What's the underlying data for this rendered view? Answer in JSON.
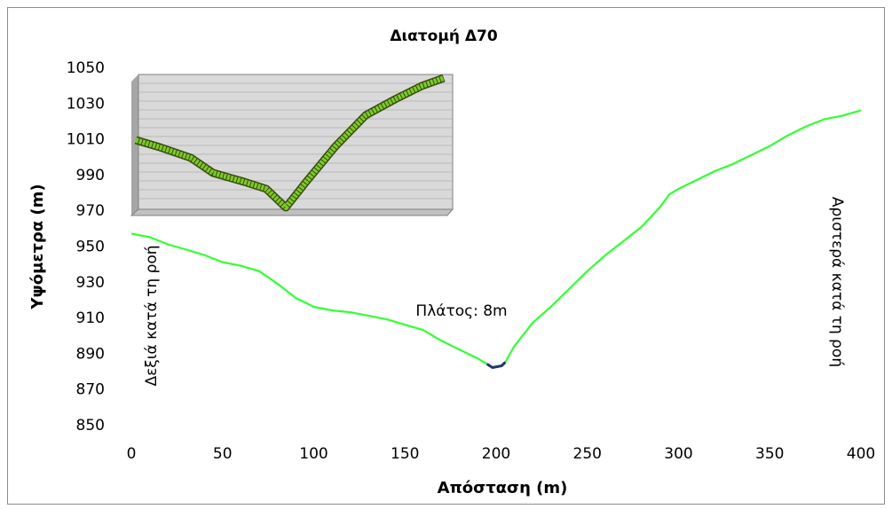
{
  "chart_data": {
    "type": "line",
    "title": "Διατομή Δ70",
    "y_label": "Υψόμετρα (m)",
    "x_label": "Απόσταση (m)",
    "annotations": [
      "Δεξιά κατά τη ροή",
      "Αριστερά κατά τη ροή",
      "Πλάτος: 8m"
    ],
    "x": [
      0,
      10,
      20,
      30,
      40,
      50,
      60,
      70,
      80,
      90,
      100,
      110,
      120,
      130,
      140,
      150,
      160,
      170,
      180,
      190,
      195,
      198,
      203,
      205,
      210,
      220,
      230,
      240,
      250,
      260,
      270,
      280,
      290,
      295,
      300,
      310,
      320,
      330,
      340,
      350,
      360,
      370,
      380,
      390,
      400
    ],
    "series": [
      {
        "color": "#33ff33",
        "values": [
          957,
          955,
          951,
          948,
          945,
          941,
          939,
          936,
          929,
          921,
          916,
          914,
          913,
          911,
          909,
          906,
          903,
          897,
          892,
          887,
          884,
          882,
          883,
          885,
          894,
          907,
          916,
          926,
          936,
          945,
          953,
          961,
          972,
          979,
          982,
          987,
          992,
          996,
          1001,
          1006,
          1012,
          1017,
          1021,
          1023,
          1026
        ]
      },
      {
        "color": "#1f3864",
        "values": [
          null,
          null,
          null,
          null,
          null,
          null,
          null,
          null,
          null,
          null,
          null,
          null,
          null,
          null,
          null,
          null,
          null,
          null,
          null,
          null,
          884,
          882,
          883,
          885,
          null,
          null,
          null,
          null,
          null,
          null,
          null,
          null,
          null,
          null,
          null,
          null,
          null,
          null,
          null,
          null,
          null,
          null,
          null,
          null,
          null
        ]
      }
    ],
    "xlim": [
      0,
      400
    ],
    "xticks": [
      0,
      50,
      100,
      150,
      200,
      250,
      300,
      350,
      400
    ],
    "ylim": [
      850,
      1050
    ],
    "yticks": [
      850,
      870,
      890,
      910,
      930,
      950,
      970,
      990,
      1010,
      1030,
      1050
    ],
    "grid": false
  }
}
